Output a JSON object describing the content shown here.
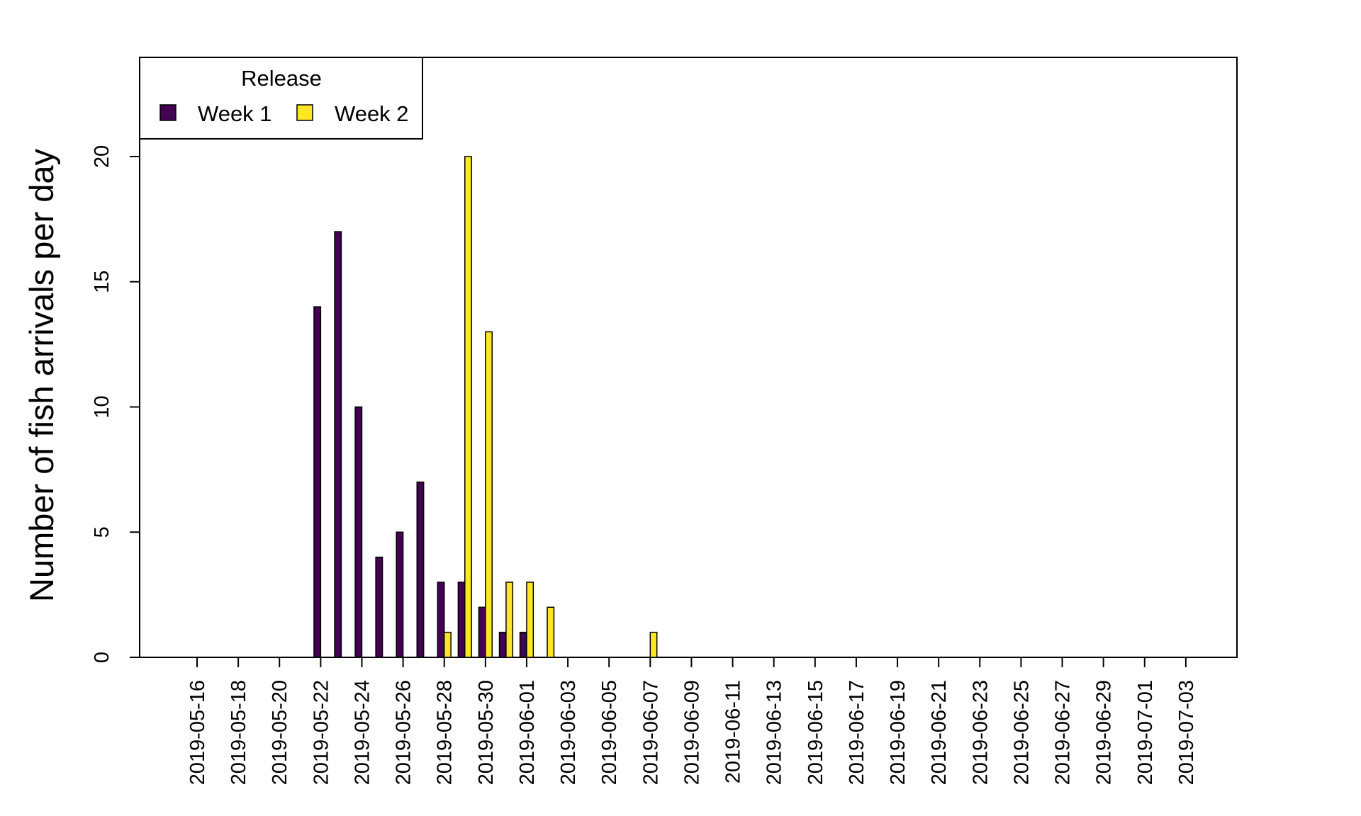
{
  "chart_data": {
    "type": "bar",
    "ylabel": "Number of fish arrivals per day",
    "xlabel": "",
    "ylim": [
      0,
      24
    ],
    "yticks": [
      0,
      5,
      10,
      15,
      20
    ],
    "legend": {
      "title": "Release",
      "position": "top-left"
    },
    "categories": [
      "2019-05-16",
      "2019-05-17",
      "2019-05-18",
      "2019-05-19",
      "2019-05-20",
      "2019-05-21",
      "2019-05-22",
      "2019-05-23",
      "2019-05-24",
      "2019-05-25",
      "2019-05-26",
      "2019-05-27",
      "2019-05-28",
      "2019-05-29",
      "2019-05-30",
      "2019-05-31",
      "2019-06-01",
      "2019-06-02",
      "2019-06-03",
      "2019-06-04",
      "2019-06-05",
      "2019-06-06",
      "2019-06-07",
      "2019-06-08",
      "2019-06-09",
      "2019-06-10",
      "2019-06-11",
      "2019-06-12",
      "2019-06-13",
      "2019-06-14",
      "2019-06-15",
      "2019-06-16",
      "2019-06-17",
      "2019-06-18",
      "2019-06-19",
      "2019-06-20",
      "2019-06-21",
      "2019-06-22",
      "2019-06-23",
      "2019-06-24",
      "2019-06-25",
      "2019-06-26",
      "2019-06-27",
      "2019-06-28",
      "2019-06-29",
      "2019-06-30",
      "2019-07-01",
      "2019-07-02",
      "2019-07-03"
    ],
    "xtick_labels": [
      "2019-05-16",
      "2019-05-18",
      "2019-05-20",
      "2019-05-22",
      "2019-05-24",
      "2019-05-26",
      "2019-05-28",
      "2019-05-30",
      "2019-06-01",
      "2019-06-03",
      "2019-06-05",
      "2019-06-07",
      "2019-06-09",
      "2019-06-11",
      "2019-06-13",
      "2019-06-15",
      "2019-06-17",
      "2019-06-19",
      "2019-06-21",
      "2019-06-23",
      "2019-06-25",
      "2019-06-27",
      "2019-06-29",
      "2019-07-01",
      "2019-07-03"
    ],
    "series": [
      {
        "name": "Week 1",
        "color": "#440154",
        "values": [
          0,
          0,
          0,
          0,
          0,
          0,
          14,
          17,
          10,
          4,
          5,
          7,
          3,
          3,
          2,
          1,
          1,
          0,
          0,
          0,
          0,
          0,
          0,
          0,
          0,
          0,
          0,
          0,
          0,
          0,
          0,
          0,
          0,
          0,
          0,
          0,
          0,
          0,
          0,
          0,
          0,
          0,
          0,
          0,
          0,
          0,
          0,
          0,
          0
        ]
      },
      {
        "name": "Week 2",
        "color": "#FDE725",
        "values": [
          0,
          0,
          0,
          0,
          0,
          0,
          0,
          0,
          0,
          0,
          0,
          0,
          1,
          20,
          13,
          3,
          3,
          2,
          0,
          0,
          0,
          0,
          1,
          0,
          0,
          0,
          0,
          0,
          0,
          0,
          0,
          0,
          0,
          0,
          0,
          0,
          0,
          0,
          0,
          0,
          0,
          0,
          0,
          0,
          0,
          0,
          0,
          0,
          0
        ]
      }
    ]
  }
}
